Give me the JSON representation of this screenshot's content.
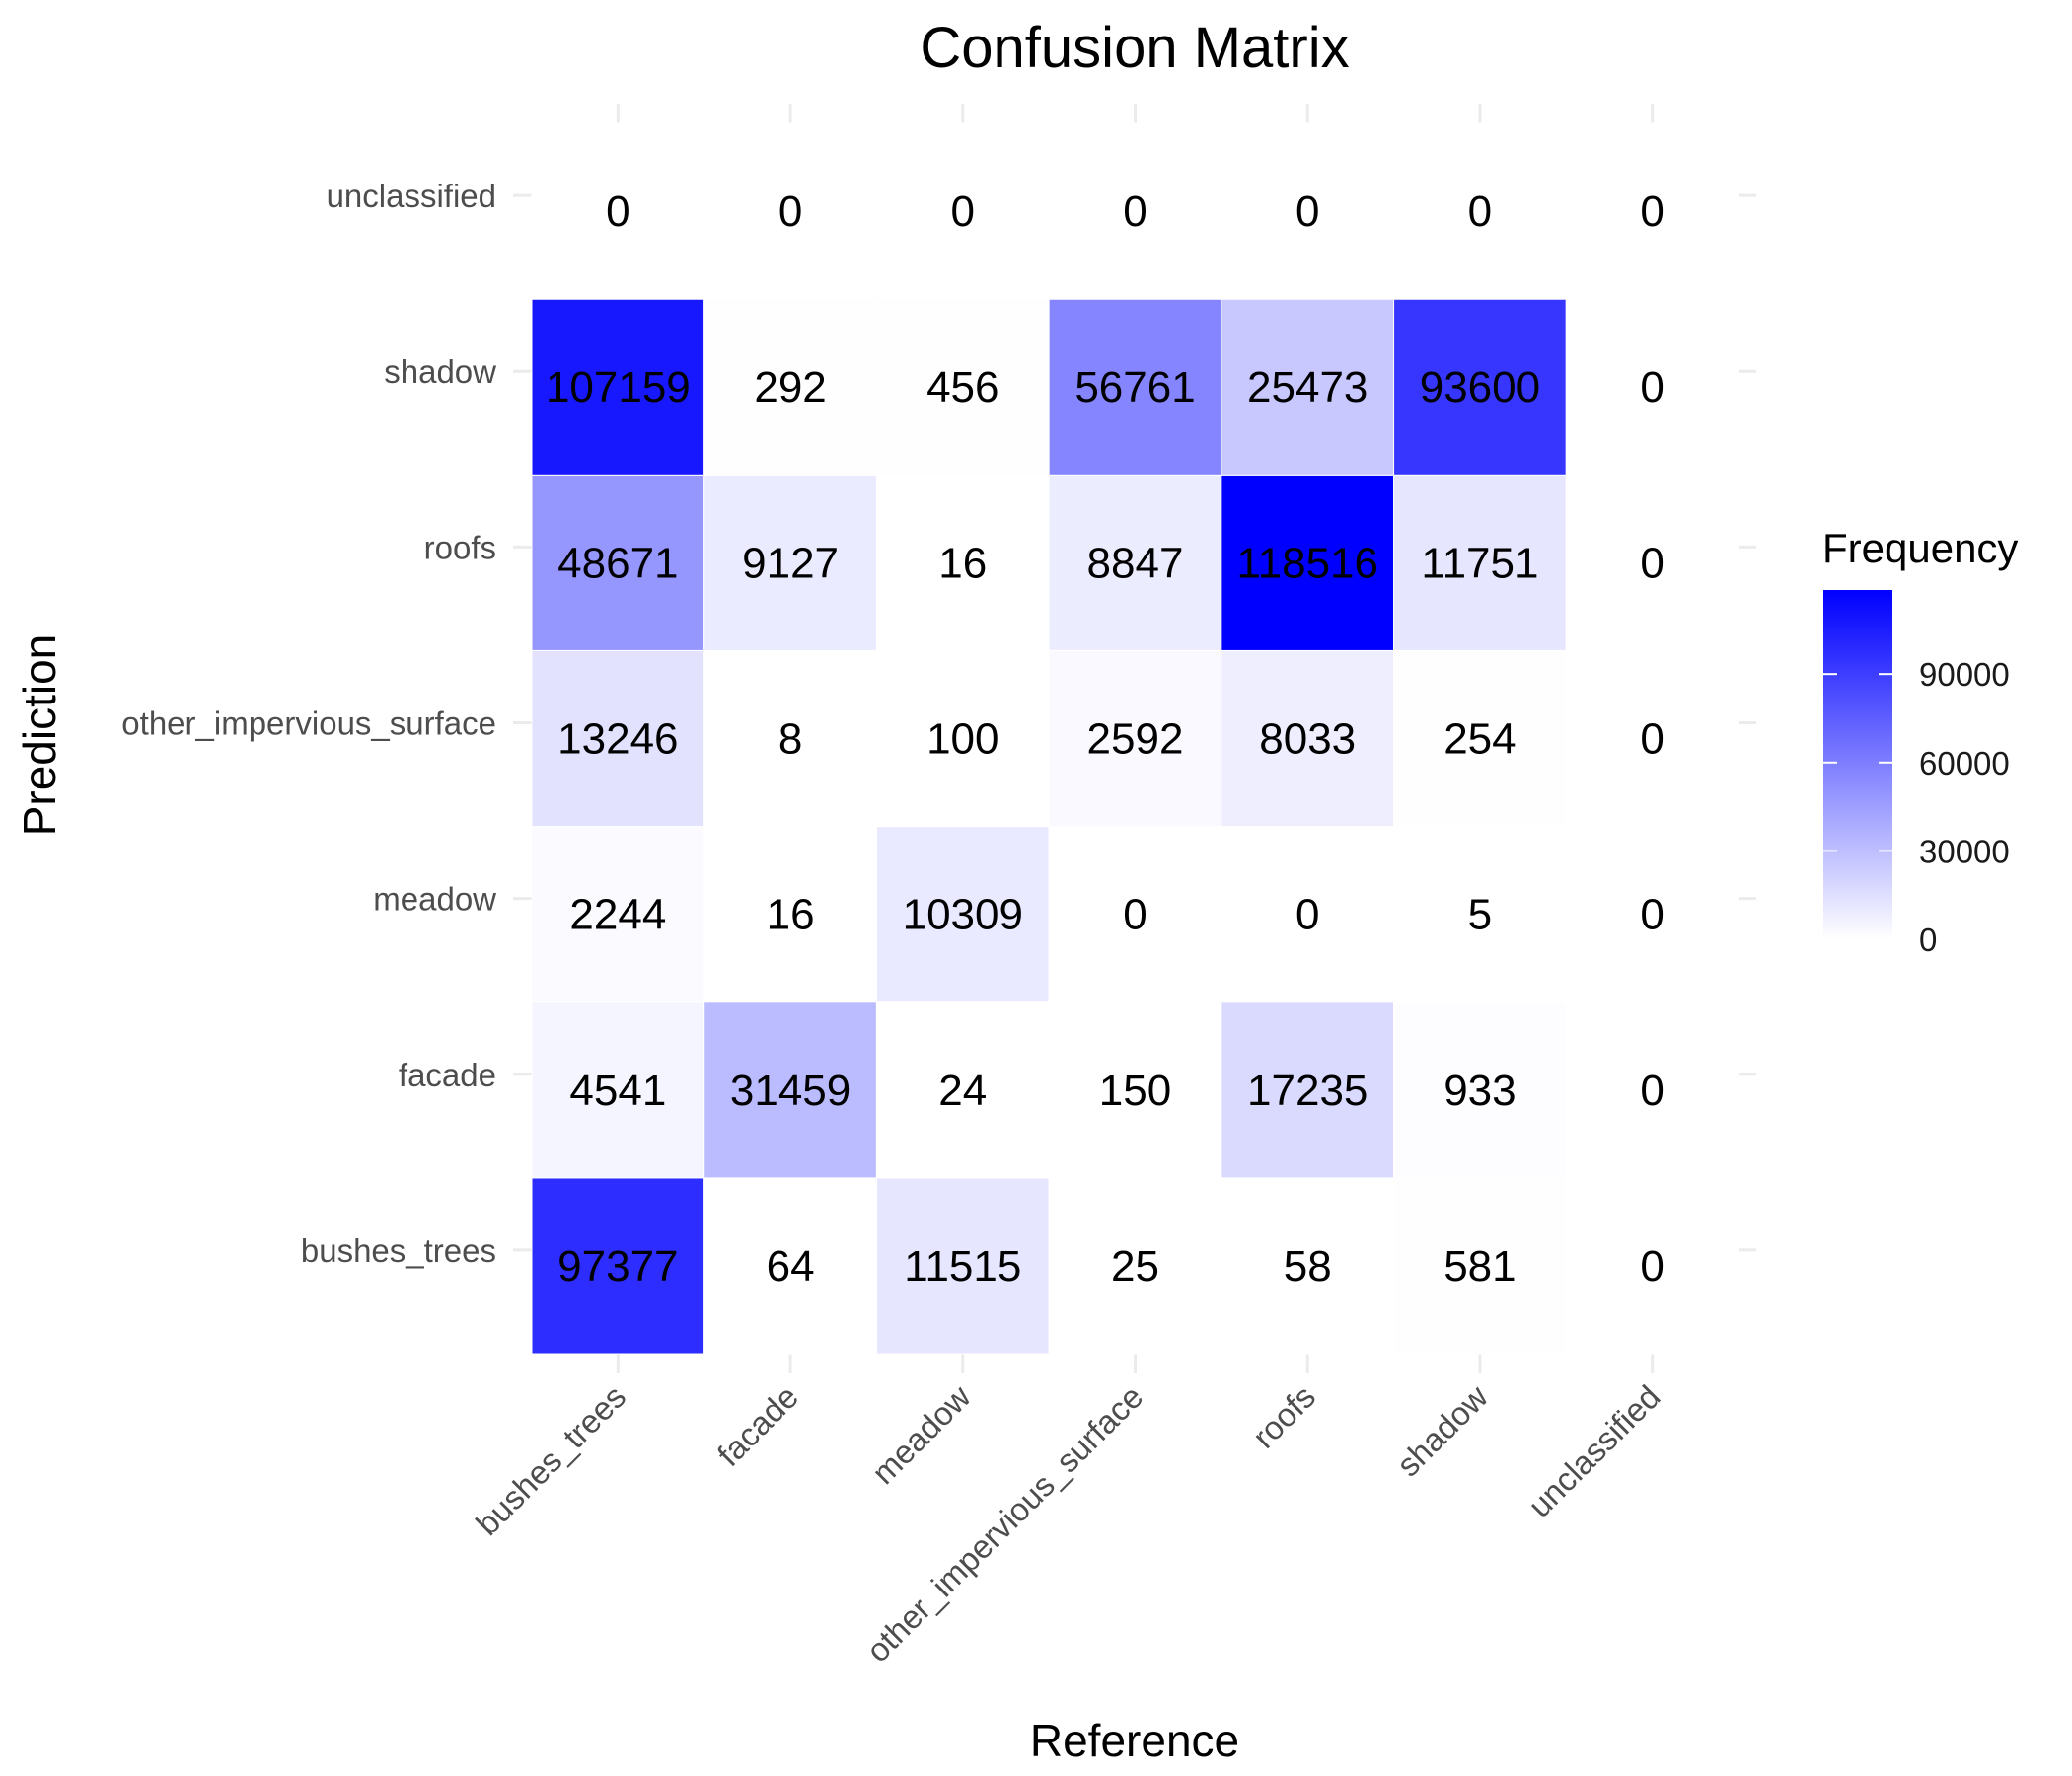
{
  "chart_data": {
    "type": "heatmap",
    "title": "Confusion Matrix",
    "xlabel": "Reference",
    "ylabel": "Prediction",
    "x_categories": [
      "bushes_trees",
      "facade",
      "meadow",
      "other_impervious_surface",
      "roofs",
      "shadow",
      "unclassified"
    ],
    "y_categories": [
      "bushes_trees",
      "facade",
      "meadow",
      "other_impervious_surface",
      "roofs",
      "shadow",
      "unclassified"
    ],
    "matrix": [
      [
        97377,
        64,
        11515,
        25,
        58,
        581,
        0
      ],
      [
        4541,
        31459,
        24,
        150,
        17235,
        933,
        0
      ],
      [
        2244,
        16,
        10309,
        0,
        0,
        5,
        0
      ],
      [
        13246,
        8,
        100,
        2592,
        8033,
        254,
        0
      ],
      [
        48671,
        9127,
        16,
        8847,
        118516,
        11751,
        0
      ],
      [
        107159,
        292,
        456,
        56761,
        25473,
        93600,
        0
      ],
      [
        0,
        0,
        0,
        0,
        0,
        0,
        0
      ]
    ],
    "color_scale": {
      "low": "#ffffff",
      "high": "#0000ff",
      "min": 0,
      "max": 118516
    },
    "legend": {
      "title": "Frequency",
      "ticks": [
        0,
        30000,
        60000,
        90000
      ],
      "position": "right"
    }
  }
}
